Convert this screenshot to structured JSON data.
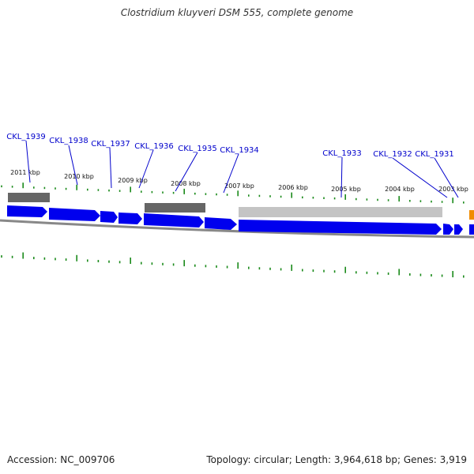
{
  "title": "Clostridium kluyveri DSM 555, complete genome",
  "footer": {
    "accession": "Accession: NC_009706",
    "summary": "Topology: circular; Length: 3,964,618 bp; Genes: 3,919"
  },
  "colors": {
    "gene_label": "#0000cc",
    "gene_arrow": "#0000ee",
    "tick": "#1a8a1a",
    "backbone": "#888888",
    "feature_dark": "#666666",
    "feature_light": "#c4c4c4",
    "feature_orange": "#f08c00"
  },
  "scale_labels": [
    "2011 kbp",
    "2010 kbp",
    "2009 kbp",
    "2008 kbp",
    "2007 kbp",
    "2006 kbp",
    "2005 kbp",
    "2004 kbp",
    "2003 kbp"
  ],
  "gene_labels": [
    "CKL_1939",
    "CKL_1938",
    "CKL_1937",
    "CKL_1936",
    "CKL_1935",
    "CKL_1934",
    "CKL_1933",
    "CKL_1932",
    "CKL_1931"
  ]
}
